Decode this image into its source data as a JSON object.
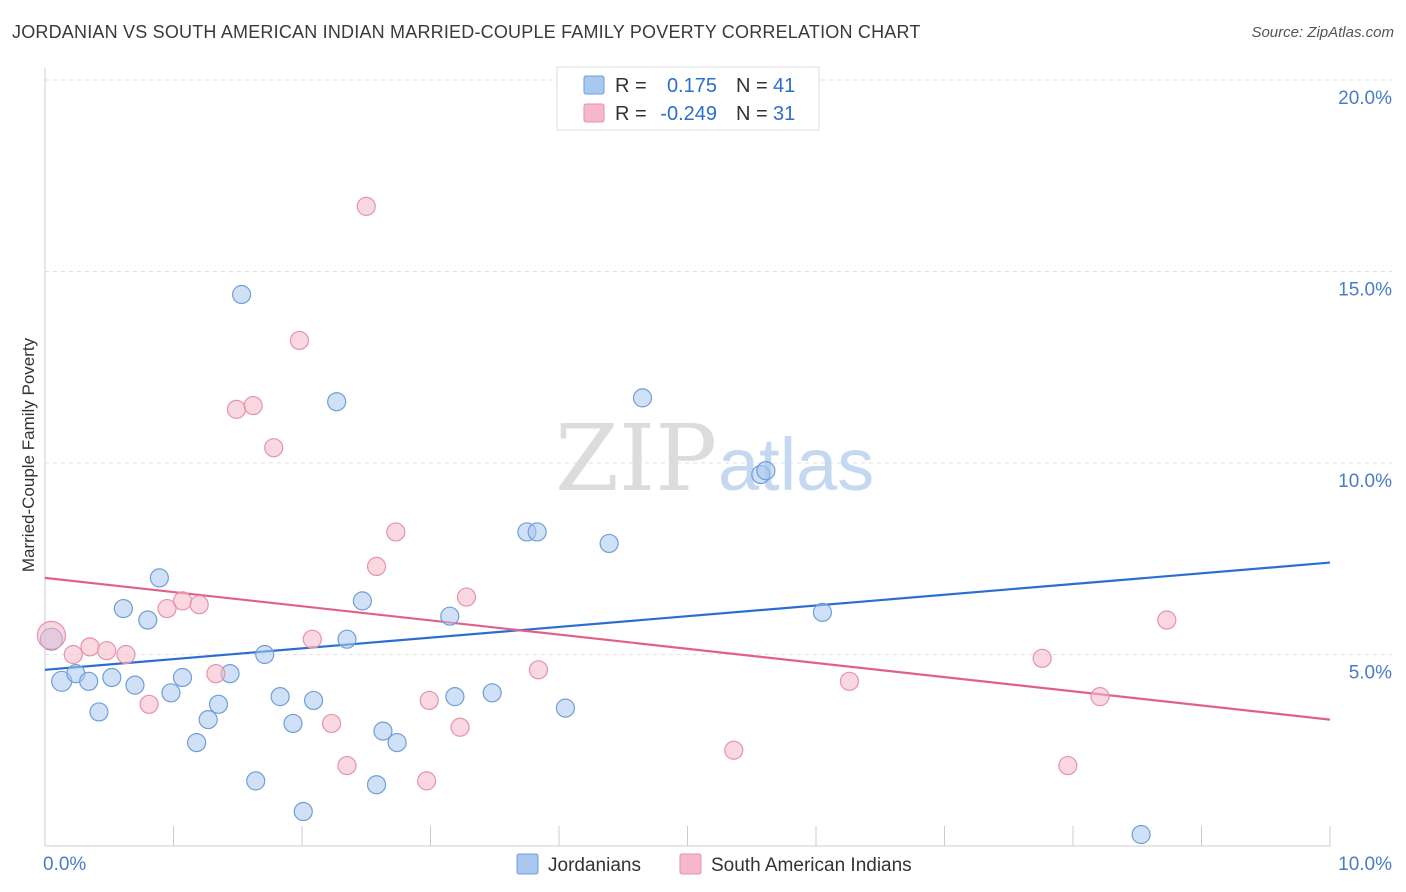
{
  "title": "JORDANIAN VS SOUTH AMERICAN INDIAN MARRIED-COUPLE FAMILY POVERTY CORRELATION CHART",
  "source": "Source: ZipAtlas.com",
  "watermark": {
    "zip": "ZIP",
    "atlas": "atlas"
  },
  "legend_top": [
    {
      "r_label": "R =",
      "r_value": "0.175",
      "n_label": "N =",
      "n_value": "41",
      "color": "#a9c8f0"
    },
    {
      "r_label": "R =",
      "r_value": "-0.249",
      "n_label": "N =",
      "n_value": "31",
      "color": "#f6b8ca"
    }
  ],
  "chart_data": {
    "type": "scatter",
    "title": "JORDANIAN VS SOUTH AMERICAN INDIAN MARRIED-COUPLE FAMILY POVERTY CORRELATION CHART",
    "xlabel": "",
    "ylabel": "Married-Couple Family Poverty",
    "xlim": [
      0,
      10
    ],
    "ylim": [
      0,
      20
    ],
    "x_tick_labels": [
      "0.0%",
      "10.0%"
    ],
    "y_ticks": [
      5,
      10,
      15,
      20
    ],
    "y_tick_labels": [
      "5.0%",
      "10.0%",
      "15.0%",
      "20.0%"
    ],
    "grid": true,
    "legend_position": "bottom",
    "series": [
      {
        "name": "Jordanians",
        "color": "#a9c8f0",
        "stroke": "#6f9ed8",
        "line_color": "#2a6fd0",
        "trend": [
          [
            0,
            4.6
          ],
          [
            10,
            7.4
          ]
        ],
        "points": [
          [
            0.05,
            5.4
          ],
          [
            0.13,
            4.3
          ],
          [
            0.24,
            4.5
          ],
          [
            0.34,
            4.3
          ],
          [
            0.42,
            3.5
          ],
          [
            0.52,
            4.4
          ],
          [
            0.61,
            6.2
          ],
          [
            0.7,
            4.2
          ],
          [
            0.8,
            5.9
          ],
          [
            0.89,
            7.0
          ],
          [
            0.98,
            4.0
          ],
          [
            1.07,
            4.4
          ],
          [
            1.18,
            2.7
          ],
          [
            1.27,
            3.3
          ],
          [
            1.35,
            3.7
          ],
          [
            1.44,
            4.5
          ],
          [
            1.53,
            14.4
          ],
          [
            1.64,
            1.7
          ],
          [
            1.71,
            5.0
          ],
          [
            1.83,
            3.9
          ],
          [
            1.93,
            3.2
          ],
          [
            2.01,
            0.9
          ],
          [
            2.09,
            3.8
          ],
          [
            2.27,
            11.6
          ],
          [
            2.35,
            5.4
          ],
          [
            2.47,
            6.4
          ],
          [
            2.58,
            1.6
          ],
          [
            2.63,
            3.0
          ],
          [
            2.74,
            2.7
          ],
          [
            3.15,
            6.0
          ],
          [
            3.19,
            3.9
          ],
          [
            3.48,
            4.0
          ],
          [
            3.75,
            8.2
          ],
          [
            3.83,
            8.2
          ],
          [
            4.05,
            3.6
          ],
          [
            4.39,
            7.9
          ],
          [
            4.65,
            11.7
          ],
          [
            5.57,
            9.7
          ],
          [
            5.61,
            9.8
          ],
          [
            6.05,
            6.1
          ],
          [
            8.53,
            0.3
          ]
        ],
        "sizes": [
          11,
          10,
          9,
          9,
          9,
          9,
          9,
          9,
          9,
          9,
          9,
          9,
          9,
          9,
          9,
          9,
          9,
          9,
          9,
          9,
          9,
          9,
          9,
          9,
          9,
          9,
          9,
          9,
          9,
          9,
          9,
          9,
          9,
          9,
          9,
          9,
          9,
          9,
          9,
          9,
          9
        ]
      },
      {
        "name": "South American Indians",
        "color": "#f6b8ca",
        "stroke": "#e891ab",
        "line_color": "#e0608c",
        "trend": [
          [
            0,
            7.0
          ],
          [
            10,
            3.3
          ]
        ],
        "points": [
          [
            0.05,
            5.5
          ],
          [
            0.22,
            5.0
          ],
          [
            0.35,
            5.2
          ],
          [
            0.48,
            5.1
          ],
          [
            0.63,
            5.0
          ],
          [
            0.81,
            3.7
          ],
          [
            0.95,
            6.2
          ],
          [
            1.07,
            6.4
          ],
          [
            1.2,
            6.3
          ],
          [
            1.33,
            4.5
          ],
          [
            1.49,
            11.4
          ],
          [
            1.62,
            11.5
          ],
          [
            1.78,
            10.4
          ],
          [
            1.98,
            13.2
          ],
          [
            2.08,
            5.4
          ],
          [
            2.23,
            3.2
          ],
          [
            2.35,
            2.1
          ],
          [
            2.5,
            16.7
          ],
          [
            2.58,
            7.3
          ],
          [
            2.73,
            8.2
          ],
          [
            2.97,
            1.7
          ],
          [
            2.99,
            3.8
          ],
          [
            3.23,
            3.1
          ],
          [
            3.28,
            6.5
          ],
          [
            3.84,
            4.6
          ],
          [
            5.36,
            2.5
          ],
          [
            6.26,
            4.3
          ],
          [
            7.76,
            4.9
          ],
          [
            7.96,
            2.1
          ],
          [
            8.21,
            3.9
          ],
          [
            8.73,
            5.9
          ]
        ],
        "sizes": [
          14,
          9,
          9,
          9,
          9,
          9,
          9,
          9,
          9,
          9,
          9,
          9,
          9,
          9,
          9,
          9,
          9,
          9,
          9,
          9,
          9,
          9,
          9,
          9,
          9,
          9,
          9,
          9,
          9,
          9,
          9
        ]
      }
    ]
  }
}
